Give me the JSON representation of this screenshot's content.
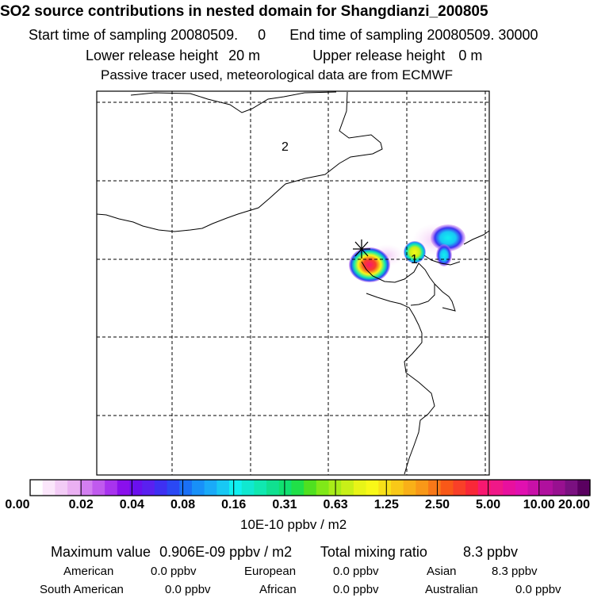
{
  "title": "SO2 source contributions in nested domain for Shangdianzi_200805",
  "sampling": {
    "start_label": "Start time of sampling",
    "start_value": "20080509.     0",
    "end_label": "End time of sampling",
    "end_value": "20080509. 30000"
  },
  "release": {
    "lower_label": "Lower release height",
    "lower_value": "20 m",
    "upper_label": "Upper release height",
    "upper_value": "0 m"
  },
  "note": "Passive tracer used, meteorological data are from ECMWF",
  "map": {
    "region_labels": [
      "2",
      "1"
    ],
    "marker": "station-star-icon"
  },
  "colorbar": {
    "ticks": [
      "0.00",
      "0.02",
      "0.04",
      "0.08",
      "0.16",
      "0.31",
      "0.63",
      "1.25",
      "2.50",
      "5.00",
      "10.00",
      "20.00"
    ],
    "units": "10E-10 ppbv / m2",
    "colors": [
      "#ffffff",
      "#fbe6fb",
      "#f3ccf6",
      "#eab0f2",
      "#d27ef0",
      "#c05aee",
      "#a833ee",
      "#8a10ec",
      "#6a10ee",
      "#5a20f0",
      "#3e30f2",
      "#2a48f4",
      "#1a70f6",
      "#1890f8",
      "#1aaaf8",
      "#18c8f4",
      "#10f0f0",
      "#10e8d0",
      "#10e8b0",
      "#10e090",
      "#10e070",
      "#20e048",
      "#50e020",
      "#80e818",
      "#a8ec18",
      "#c8f018",
      "#e8f418",
      "#f8f818",
      "#f8e018",
      "#f8c818",
      "#f8b018",
      "#f89818",
      "#f87818",
      "#f85818",
      "#f84028",
      "#f82838",
      "#f81870",
      "#f01888",
      "#e8109e",
      "#e010b0",
      "#c810a8",
      "#b0109e",
      "#981090",
      "#7a1080",
      "#5a0060"
    ]
  },
  "summary": {
    "max_label": "Maximum value",
    "max_value": "0.906E-09 ppbv / m2",
    "total_label": "Total mixing ratio",
    "total_value": "8.3 ppbv"
  },
  "regions": [
    {
      "name": "American",
      "value": "0.0 ppbv"
    },
    {
      "name": "European",
      "value": "0.0 ppbv"
    },
    {
      "name": "Asian",
      "value": "8.3 ppbv"
    },
    {
      "name": "South American",
      "value": "0.0 ppbv"
    },
    {
      "name": "African",
      "value": "0.0 ppbv"
    },
    {
      "name": "Australian",
      "value": "0.0 ppbv"
    }
  ]
}
